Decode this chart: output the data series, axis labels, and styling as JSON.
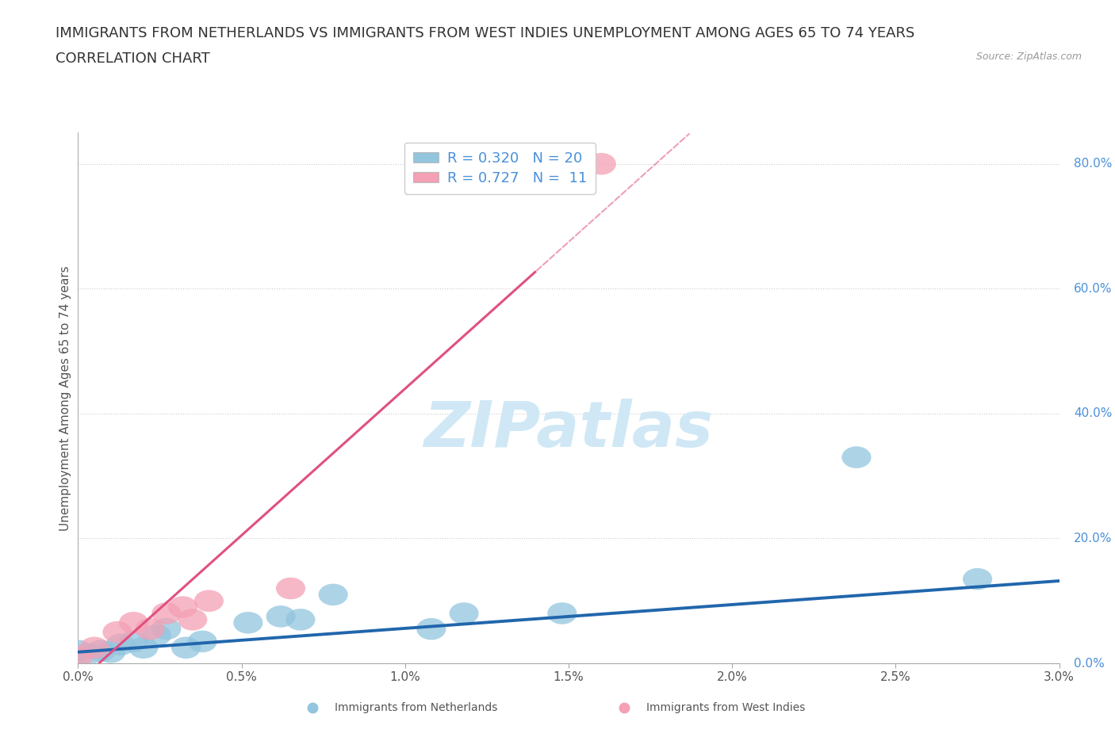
{
  "title_line1": "IMMIGRANTS FROM NETHERLANDS VS IMMIGRANTS FROM WEST INDIES UNEMPLOYMENT AMONG AGES 65 TO 74 YEARS",
  "title_line2": "CORRELATION CHART",
  "source": "Source: ZipAtlas.com",
  "ylabel": "Unemployment Among Ages 65 to 74 years",
  "xlabel": "",
  "xlim": [
    0.0,
    3.0
  ],
  "ylim": [
    0.0,
    85.0
  ],
  "xticks": [
    0.0,
    0.5,
    1.0,
    1.5,
    2.0,
    2.5,
    3.0
  ],
  "yticks": [
    0.0,
    20.0,
    40.0,
    60.0,
    80.0
  ],
  "blue_color": "#92c5de",
  "blue_line_color": "#2166ac",
  "pink_color": "#f4a0b5",
  "pink_line_color": "#e05080",
  "legend_text_color": "#4a90d9",
  "watermark_color": "#d0e8f5",
  "netherlands_R": 0.32,
  "netherlands_N": 20,
  "westindies_R": 0.727,
  "westindies_N": 11,
  "netherlands_x": [
    0.0,
    0.03,
    0.07,
    0.1,
    0.13,
    0.17,
    0.2,
    0.24,
    0.27,
    0.33,
    0.38,
    0.52,
    0.62,
    0.68,
    0.78,
    1.08,
    1.18,
    1.48,
    2.38,
    2.75
  ],
  "netherlands_y": [
    2.0,
    1.5,
    2.0,
    1.8,
    3.0,
    3.5,
    2.5,
    4.5,
    5.5,
    2.5,
    3.5,
    6.5,
    7.5,
    7.0,
    11.0,
    5.5,
    8.0,
    8.0,
    33.0,
    13.5
  ],
  "westindies_x": [
    0.0,
    0.05,
    0.12,
    0.17,
    0.22,
    0.27,
    0.32,
    0.35,
    0.4,
    0.65,
    1.6
  ],
  "westindies_y": [
    1.0,
    2.5,
    5.0,
    6.5,
    5.5,
    8.0,
    9.0,
    7.0,
    10.0,
    12.0,
    80.0
  ],
  "netherlands_slope": 3.8,
  "netherlands_intercept": 1.8,
  "westindies_slope": 47.0,
  "westindies_intercept": -3.0,
  "westindies_line_xmax_solid": 1.4,
  "background_color": "#ffffff",
  "grid_color": "#cccccc",
  "title_fontsize": 13,
  "axis_label_fontsize": 11,
  "tick_fontsize": 11,
  "legend_fontsize": 13
}
